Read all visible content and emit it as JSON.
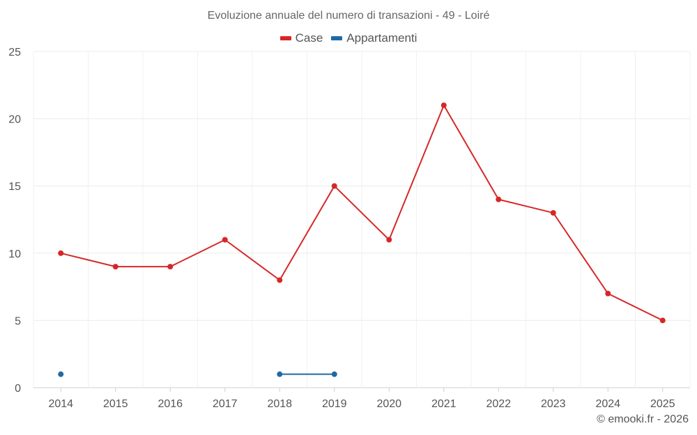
{
  "chart_data": {
    "type": "line",
    "title": "Evoluzione annuale del numero di transazioni - 49 - Loiré",
    "categories": [
      "2014",
      "2015",
      "2016",
      "2017",
      "2018",
      "2019",
      "2020",
      "2021",
      "2022",
      "2023",
      "2024",
      "2025"
    ],
    "series": [
      {
        "name": "Case",
        "color": "#d62728",
        "values": [
          10,
          9,
          9,
          11,
          8,
          15,
          11,
          21,
          14,
          13,
          7,
          5
        ]
      },
      {
        "name": "Appartamenti",
        "color": "#1f6aa5",
        "values": [
          1,
          null,
          null,
          null,
          1,
          1,
          null,
          null,
          null,
          null,
          null,
          null
        ]
      }
    ],
    "ylim": [
      0,
      25
    ],
    "yticks": [
      0,
      5,
      10,
      15,
      20,
      25
    ],
    "xlabel": "",
    "ylabel": "",
    "grid": true,
    "legend": "top-center"
  },
  "credit": "© emooki.fr - 2026"
}
